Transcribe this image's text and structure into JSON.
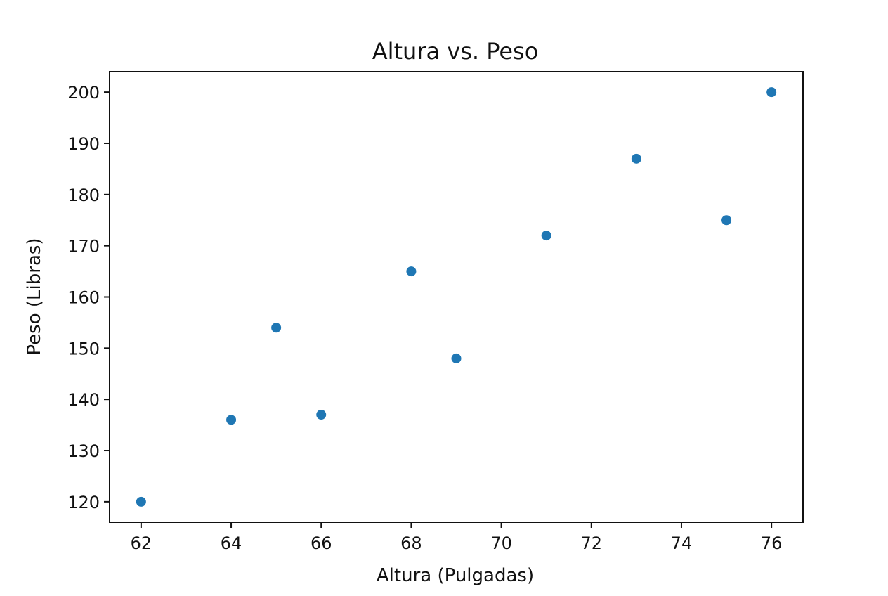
{
  "chart_data": {
    "type": "scatter",
    "title": "Altura vs. Peso",
    "xlabel": "Altura (Pulgadas)",
    "ylabel": "Peso (Libras)",
    "xlim": [
      61.3,
      76.7
    ],
    "ylim": [
      116,
      204
    ],
    "xticks": [
      62,
      64,
      66,
      68,
      70,
      72,
      74,
      76
    ],
    "yticks": [
      120,
      130,
      140,
      150,
      160,
      170,
      180,
      190,
      200
    ],
    "grid": false,
    "marker_color": "#1f77b4",
    "series": [
      {
        "x": [
          62,
          64,
          65,
          66,
          68,
          69,
          71,
          73,
          75,
          76
        ],
        "y": [
          120,
          136,
          154,
          137,
          165,
          148,
          172,
          187,
          175,
          200
        ]
      }
    ]
  }
}
